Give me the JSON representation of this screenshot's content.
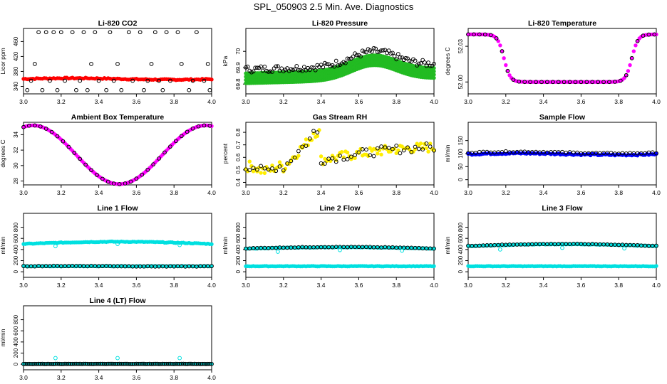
{
  "page_title": "SPL_050903  2.5 Min. Ave. Diagnostics",
  "chart_data": [
    {
      "id": "co2",
      "type": "scatter",
      "title": "Li-820 CO2",
      "ylabel": "Licor ppm",
      "xlim": [
        3.0,
        4.0
      ],
      "ylim": [
        320,
        495
      ],
      "xticks": [
        "3.0",
        "3.2",
        "3.4",
        "3.6",
        "3.8",
        "4.0"
      ],
      "yticks": [
        340,
        380,
        420,
        460
      ],
      "series": [
        {
          "name": "co2-main",
          "color": "#ff0000",
          "fill": true,
          "pattern": "flat",
          "base": 360,
          "amp": 2,
          "noise": 1.5
        },
        {
          "name": "co2-scatter",
          "color": "#000000",
          "fill": false,
          "points": [
            [
              3.02,
              330
            ],
            [
              3.04,
              355
            ],
            [
              3.06,
              400
            ],
            [
              3.08,
              485
            ],
            [
              3.1,
              330
            ],
            [
              3.12,
              485
            ],
            [
              3.14,
              355
            ],
            [
              3.16,
              485
            ],
            [
              3.18,
              330
            ],
            [
              3.2,
              485
            ],
            [
              3.22,
              355
            ],
            [
              3.26,
              485
            ],
            [
              3.28,
              330
            ],
            [
              3.3,
              355
            ],
            [
              3.32,
              485
            ],
            [
              3.34,
              330
            ],
            [
              3.36,
              400
            ],
            [
              3.38,
              485
            ],
            [
              3.4,
              355
            ],
            [
              3.44,
              330
            ],
            [
              3.46,
              485
            ],
            [
              3.48,
              355
            ],
            [
              3.5,
              400
            ],
            [
              3.52,
              330
            ],
            [
              3.56,
              485
            ],
            [
              3.58,
              355
            ],
            [
              3.62,
              485
            ],
            [
              3.64,
              330
            ],
            [
              3.66,
              355
            ],
            [
              3.68,
              400
            ],
            [
              3.7,
              485
            ],
            [
              3.72,
              355
            ],
            [
              3.74,
              330
            ],
            [
              3.76,
              485
            ],
            [
              3.78,
              355
            ],
            [
              3.82,
              485
            ],
            [
              3.84,
              400
            ],
            [
              3.88,
              330
            ],
            [
              3.9,
              355
            ],
            [
              3.92,
              485
            ],
            [
              3.96,
              355
            ],
            [
              3.98,
              400
            ],
            [
              3.99,
              330
            ]
          ]
        }
      ]
    },
    {
      "id": "pressure",
      "type": "scatter",
      "title": "Li-820 Pressure",
      "ylabel": "kPa",
      "xlim": [
        3.0,
        4.0
      ],
      "ylim": [
        69.74,
        70.14
      ],
      "xticks": [
        "3.0",
        "3.2",
        "3.4",
        "3.6",
        "3.8",
        "4.0"
      ],
      "yticks": [
        69.8,
        69.9,
        70.0
      ],
      "series": [
        {
          "name": "pressure-band",
          "color": "#22bb22",
          "fill": true,
          "pattern": "pressure",
          "offsets": [
            -0.035,
            -0.015,
            0.005,
            0.025
          ]
        },
        {
          "name": "pressure-black",
          "color": "#000000",
          "fill": false,
          "pattern": "pressure",
          "offsets": [
            0.05
          ],
          "noise": 0.02
        }
      ]
    },
    {
      "id": "temperature",
      "type": "scatter",
      "title": "Li-820 Temperature",
      "ylabel": "degrees C",
      "xlim": [
        3.0,
        4.0
      ],
      "ylim": [
        51.99,
        52.045
      ],
      "xticks": [
        "3.0",
        "3.2",
        "3.4",
        "3.6",
        "3.8",
        "4.0"
      ],
      "yticks": [
        {
          "v": 52.0,
          "l": "52.00"
        },
        {
          "v": 52.03,
          "l": "52.03"
        }
      ],
      "series": [
        {
          "name": "temp-magenta",
          "color": "#ff00ff",
          "fill": true,
          "pattern": "licortemp"
        },
        {
          "name": "temp-black",
          "color": "#000000",
          "fill": false,
          "pattern": "licortemp",
          "step": 3
        }
      ]
    },
    {
      "id": "ambient",
      "type": "scatter",
      "title": "Ambient Box Temperature",
      "ylabel": "degrees C",
      "xlim": [
        3.0,
        4.0
      ],
      "ylim": [
        27.5,
        35.6
      ],
      "xticks": [
        "3.0",
        "3.2",
        "3.4",
        "3.6",
        "3.8",
        "4.0"
      ],
      "yticks": [
        28,
        30,
        32,
        34
      ],
      "series": [
        {
          "name": "ambient-magenta",
          "color": "#ff00ff",
          "fill": true,
          "pattern": "ambient"
        },
        {
          "name": "ambient-black",
          "color": "#000000",
          "fill": false,
          "pattern": "ambient",
          "step": 3
        }
      ]
    },
    {
      "id": "rh",
      "type": "scatter",
      "title": "Gas Stream RH",
      "ylabel": "percent",
      "xlim": [
        3.0,
        4.0
      ],
      "ylim": [
        0.38,
        0.88
      ],
      "xticks": [
        "3.0",
        "3.2",
        "3.4",
        "3.6",
        "3.8",
        "4.0"
      ],
      "yticks": [
        0.4,
        0.5,
        0.6,
        0.7,
        0.8
      ],
      "series": [
        {
          "name": "rh-yellow",
          "color": "#ffee00",
          "fill": true,
          "pattern": "rh",
          "noise": 0.04
        },
        {
          "name": "rh-black",
          "color": "#000000",
          "fill": false,
          "pattern": "rh",
          "step": 2,
          "noise": 0.035
        }
      ]
    },
    {
      "id": "sample",
      "type": "scatter",
      "title": "Sample Flow",
      "ylabel": "ml/min",
      "xlim": [
        3.0,
        4.0
      ],
      "ylim": [
        -20,
        220
      ],
      "xticks": [
        "3.0",
        "3.2",
        "3.4",
        "3.6",
        "3.8",
        "4.0"
      ],
      "yticks": [
        0,
        50,
        100,
        150
      ],
      "series": [
        {
          "name": "sample-blue",
          "color": "#0000ff",
          "fill": true,
          "pattern": "flat",
          "base": 98,
          "amp": 3,
          "noise": 3
        },
        {
          "name": "sample-black",
          "color": "#000000",
          "fill": false,
          "pattern": "flat",
          "base": 104,
          "amp": 3,
          "noise": 2,
          "step": 2
        }
      ]
    },
    {
      "id": "line1",
      "type": "scatter",
      "title": "Line 1 Flow",
      "ylabel": "ml/min",
      "xlim": [
        3.0,
        4.0
      ],
      "ylim": [
        -100,
        1050
      ],
      "xticks": [
        "3.0",
        "3.2",
        "3.4",
        "3.6",
        "3.8",
        "4.0"
      ],
      "yticks": [
        0,
        200,
        400,
        600,
        800
      ],
      "series": [
        {
          "name": "line1-cyan-high",
          "color": "#00e0e0",
          "fill": true,
          "pattern": "hump",
          "base": 500,
          "amp": 40,
          "noise": 6
        },
        {
          "name": "line1-cyan-low",
          "color": "#00e0e0",
          "fill": true,
          "pattern": "flat",
          "base": 100,
          "amp": 0,
          "noise": 4
        },
        {
          "name": "line1-black",
          "color": "#000000",
          "fill": false,
          "pattern": "flat",
          "base": 100,
          "amp": 4,
          "noise": 4,
          "step": 2
        },
        {
          "name": "line1-outliers",
          "color": "#00e0e0",
          "fill": false,
          "points": [
            [
              3.17,
              460
            ],
            [
              3.5,
              500
            ],
            [
              3.83,
              480
            ]
          ]
        }
      ]
    },
    {
      "id": "line2",
      "type": "scatter",
      "title": "Line 2 Flow",
      "ylabel": "ml/min",
      "xlim": [
        3.0,
        4.0
      ],
      "ylim": [
        -100,
        1050
      ],
      "xticks": [
        "3.0",
        "3.2",
        "3.4",
        "3.6",
        "3.8",
        "4.0"
      ],
      "yticks": [
        0,
        200,
        400,
        600,
        800
      ],
      "series": [
        {
          "name": "line2-cyan-low",
          "color": "#00e0e0",
          "fill": true,
          "pattern": "flat",
          "base": 100,
          "amp": 0,
          "noise": 4
        },
        {
          "name": "line2-cyan-high",
          "color": "#00e0e0",
          "fill": true,
          "pattern": "hump",
          "base": 415,
          "amp": 25,
          "noise": 4
        },
        {
          "name": "line2-black",
          "color": "#000000",
          "fill": false,
          "pattern": "hump",
          "base": 420,
          "amp": 25,
          "noise": 4,
          "step": 2
        },
        {
          "name": "line2-outliers",
          "color": "#00e0e0",
          "fill": false,
          "points": [
            [
              3.17,
              360
            ],
            [
              3.5,
              390
            ],
            [
              3.83,
              380
            ]
          ]
        }
      ]
    },
    {
      "id": "line3",
      "type": "scatter",
      "title": "Line 3 Flow",
      "ylabel": "ml/min",
      "xlim": [
        3.0,
        4.0
      ],
      "ylim": [
        -100,
        1050
      ],
      "xticks": [
        "3.0",
        "3.2",
        "3.4",
        "3.6",
        "3.8",
        "4.0"
      ],
      "yticks": [
        0,
        200,
        400,
        600,
        800
      ],
      "series": [
        {
          "name": "line3-cyan-low",
          "color": "#00e0e0",
          "fill": true,
          "pattern": "flat",
          "base": 100,
          "amp": 0,
          "noise": 4
        },
        {
          "name": "line3-cyan-high",
          "color": "#00e0e0",
          "fill": true,
          "pattern": "hump",
          "base": 460,
          "amp": 35,
          "noise": 4
        },
        {
          "name": "line3-black",
          "color": "#000000",
          "fill": false,
          "pattern": "hump",
          "base": 465,
          "amp": 35,
          "noise": 4,
          "step": 2
        },
        {
          "name": "line3-outliers",
          "color": "#00e0e0",
          "fill": false,
          "points": [
            [
              3.17,
              400
            ],
            [
              3.5,
              430
            ],
            [
              3.83,
              420
            ]
          ]
        }
      ]
    },
    {
      "id": "line4",
      "type": "scatter",
      "title": "Line 4 (LT) Flow",
      "ylabel": "ml/min",
      "xlim": [
        3.0,
        4.0
      ],
      "ylim": [
        -100,
        1050
      ],
      "xticks": [
        "3.0",
        "3.2",
        "3.4",
        "3.6",
        "3.8",
        "4.0"
      ],
      "yticks": [
        0,
        200,
        400,
        600,
        800
      ],
      "series": [
        {
          "name": "line4-cyan",
          "color": "#00e0e0",
          "fill": true,
          "pattern": "flat",
          "base": 5,
          "amp": 0,
          "noise": 2
        },
        {
          "name": "line4-black",
          "color": "#000000",
          "fill": false,
          "pattern": "flat",
          "base": 5,
          "amp": 0,
          "noise": 2,
          "step": 1
        },
        {
          "name": "line4-outliers",
          "color": "#00e0e0",
          "fill": false,
          "points": [
            [
              3.17,
              110
            ],
            [
              3.5,
              110
            ],
            [
              3.83,
              110
            ]
          ]
        }
      ]
    }
  ]
}
